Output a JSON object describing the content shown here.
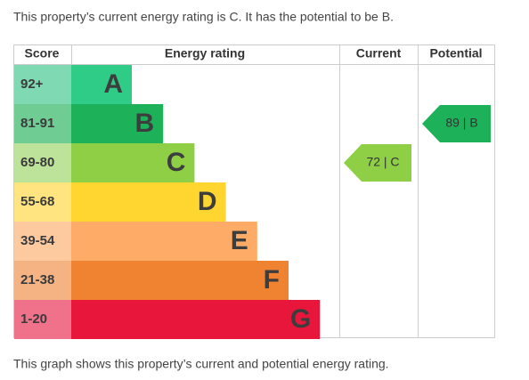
{
  "intro": "This property’s current energy rating is C. It has the potential to be B.",
  "table": {
    "headers": [
      "Score",
      "Energy rating",
      "Current",
      "Potential"
    ],
    "rows": [
      {
        "score": "92+",
        "rating": "A",
        "color": "#2ecc87",
        "light": "#7fd9b3"
      },
      {
        "score": "81-91",
        "rating": "B",
        "color": "#1db25a",
        "light": "#6fcc93"
      },
      {
        "score": "69-80",
        "rating": "C",
        "color": "#8ecf46",
        "light": "#bde39a"
      },
      {
        "score": "55-68",
        "rating": "D",
        "color": "#ffd52f",
        "light": "#ffe47f"
      },
      {
        "score": "39-54",
        "rating": "E",
        "color": "#fdab67",
        "light": "#fdcaa0"
      },
      {
        "score": "21-38",
        "rating": "F",
        "color": "#ef8332",
        "light": "#f5b283"
      },
      {
        "score": "1-20",
        "rating": "G",
        "color": "#e9163c",
        "light": "#f0718a"
      }
    ],
    "current": {
      "label": "72 | C",
      "rating": "C"
    },
    "potential": {
      "label": "89 | B",
      "rating": "B"
    }
  },
  "footer": "This graph shows this property’s current and potential energy rating."
}
